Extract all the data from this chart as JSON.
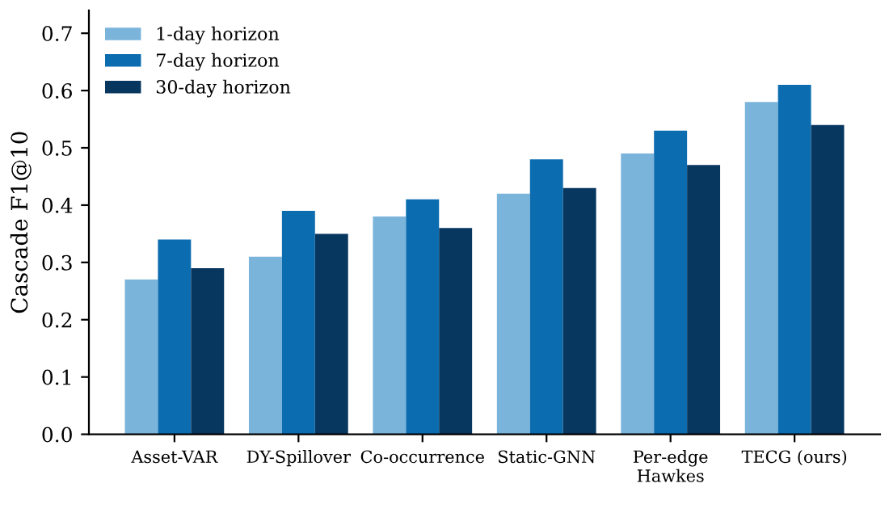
{
  "chart_data": {
    "type": "bar",
    "ylabel": "Cascade F1@10",
    "categories": [
      "Asset-VAR",
      "DY-Spillover",
      "Co-occurrence",
      "Static-GNN",
      "Per-edge\nHawkes",
      "TECG (ours)"
    ],
    "series": [
      {
        "name": "1-day horizon",
        "color": "#7bb4db",
        "values": [
          0.27,
          0.31,
          0.38,
          0.42,
          0.49,
          0.58
        ]
      },
      {
        "name": "7-day horizon",
        "color": "#0b6cb0",
        "values": [
          0.34,
          0.39,
          0.41,
          0.48,
          0.53,
          0.61
        ]
      },
      {
        "name": "30-day horizon",
        "color": "#07365f",
        "values": [
          0.29,
          0.35,
          0.36,
          0.43,
          0.47,
          0.54
        ]
      }
    ],
    "ylim": [
      0,
      0.74
    ],
    "yticks": [
      {
        "value": 0,
        "label": "0.0"
      },
      0.1,
      0.2,
      0.3,
      0.4,
      0.5,
      0.6,
      0.7
    ],
    "legend": "top left",
    "grid": false
  }
}
